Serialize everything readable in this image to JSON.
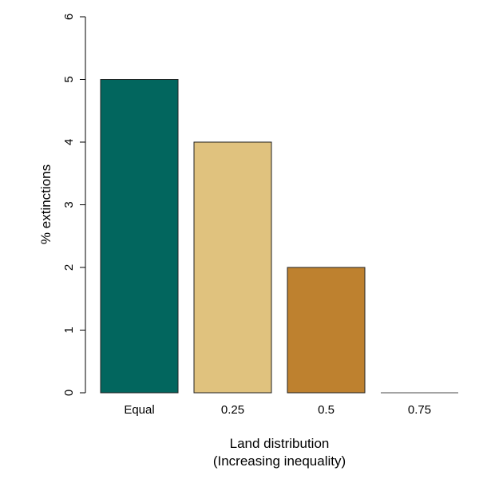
{
  "chart_data": {
    "type": "bar",
    "categories": [
      "Equal",
      "0.25",
      "0.5",
      "0.75"
    ],
    "values": [
      5,
      4,
      2,
      0
    ],
    "colors": [
      "#02665e",
      "#e0c27e",
      "#be812f",
      "#4a4a4a"
    ],
    "xlabel": "Land distribution",
    "xlabel_sub": "(Increasing inequality)",
    "ylabel": "% extinctions",
    "ylim": [
      0,
      6
    ],
    "yticks": [
      "0",
      "1",
      "2",
      "3",
      "4",
      "5",
      "6"
    ],
    "grid": false,
    "legend": "none"
  }
}
